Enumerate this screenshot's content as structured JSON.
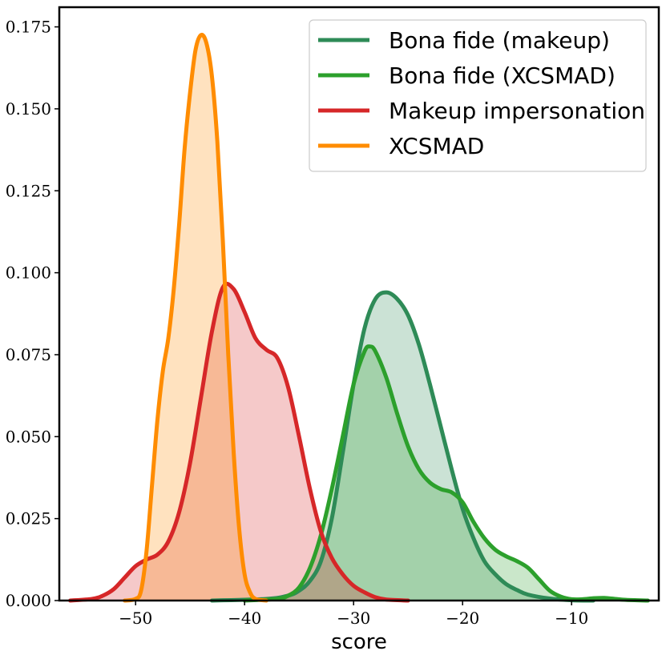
{
  "chart_data": {
    "type": "area",
    "xlabel": "score",
    "ylabel": "",
    "xlim": [
      -57,
      -2
    ],
    "ylim": [
      0,
      0.181
    ],
    "x_ticks": [
      {
        "value": -50,
        "label": "−50"
      },
      {
        "value": -40,
        "label": "−40"
      },
      {
        "value": -30,
        "label": "−30"
      },
      {
        "value": -20,
        "label": "−20"
      },
      {
        "value": -10,
        "label": "−10"
      }
    ],
    "y_ticks": [
      {
        "value": 0.0,
        "label": "0.000"
      },
      {
        "value": 0.025,
        "label": "0.025"
      },
      {
        "value": 0.05,
        "label": "0.050"
      },
      {
        "value": 0.075,
        "label": "0.075"
      },
      {
        "value": 0.1,
        "label": "0.100"
      },
      {
        "value": 0.125,
        "label": "0.125"
      },
      {
        "value": 0.15,
        "label": "0.150"
      },
      {
        "value": 0.175,
        "label": "0.175"
      }
    ],
    "grid": false,
    "legend_position": "top-right",
    "series": [
      {
        "name": "Bona fide (makeup)",
        "color": "#2e8b57",
        "fill_opacity": 0.25,
        "points": [
          [
            -43,
            0
          ],
          [
            -38,
            0.0005
          ],
          [
            -36,
            0.0015
          ],
          [
            -35,
            0.003
          ],
          [
            -34,
            0.006
          ],
          [
            -33,
            0.012
          ],
          [
            -32,
            0.025
          ],
          [
            -31,
            0.045
          ],
          [
            -30,
            0.066
          ],
          [
            -29,
            0.083
          ],
          [
            -28,
            0.092
          ],
          [
            -27,
            0.094
          ],
          [
            -26,
            0.092
          ],
          [
            -25,
            0.087
          ],
          [
            -24,
            0.078
          ],
          [
            -23,
            0.066
          ],
          [
            -22,
            0.053
          ],
          [
            -21,
            0.04
          ],
          [
            -20,
            0.028
          ],
          [
            -19,
            0.019
          ],
          [
            -18,
            0.012
          ],
          [
            -17,
            0.008
          ],
          [
            -16,
            0.005
          ],
          [
            -15,
            0.0032
          ],
          [
            -14,
            0.0018
          ],
          [
            -12,
            0.0006
          ],
          [
            -10,
            0.0001
          ],
          [
            -8,
            0
          ]
        ]
      },
      {
        "name": "Bona fide (XCSMAD)",
        "color": "#2ca02c",
        "fill_opacity": 0.25,
        "points": [
          [
            -40,
            0
          ],
          [
            -37,
            0.0005
          ],
          [
            -36,
            0.0015
          ],
          [
            -35,
            0.004
          ],
          [
            -34,
            0.01
          ],
          [
            -33,
            0.02
          ],
          [
            -32,
            0.034
          ],
          [
            -31,
            0.05
          ],
          [
            -30,
            0.066
          ],
          [
            -29,
            0.076
          ],
          [
            -28.5,
            0.0775
          ],
          [
            -28,
            0.076
          ],
          [
            -27,
            0.068
          ],
          [
            -26,
            0.057
          ],
          [
            -25,
            0.047
          ],
          [
            -24,
            0.04
          ],
          [
            -23,
            0.036
          ],
          [
            -22,
            0.034
          ],
          [
            -21,
            0.033
          ],
          [
            -20,
            0.03
          ],
          [
            -19,
            0.024
          ],
          [
            -18,
            0.019
          ],
          [
            -17,
            0.0155
          ],
          [
            -16,
            0.0135
          ],
          [
            -15,
            0.012
          ],
          [
            -14,
            0.01
          ],
          [
            -13,
            0.0065
          ],
          [
            -12,
            0.003
          ],
          [
            -11,
            0.0012
          ],
          [
            -10,
            0.0004
          ],
          [
            -9,
            0.0004
          ],
          [
            -8,
            0.0007
          ],
          [
            -7,
            0.0008
          ],
          [
            -6,
            0.0005
          ],
          [
            -5,
            0.0002
          ],
          [
            -3,
            0
          ]
        ]
      },
      {
        "name": "Makeup impersonation",
        "color": "#d62728",
        "fill_opacity": 0.25,
        "points": [
          [
            -56,
            0
          ],
          [
            -54,
            0.0005
          ],
          [
            -53,
            0.0015
          ],
          [
            -52,
            0.0035
          ],
          [
            -51,
            0.007
          ],
          [
            -50,
            0.0105
          ],
          [
            -49,
            0.0125
          ],
          [
            -48,
            0.014
          ],
          [
            -47,
            0.018
          ],
          [
            -46,
            0.027
          ],
          [
            -45,
            0.042
          ],
          [
            -44,
            0.062
          ],
          [
            -43,
            0.082
          ],
          [
            -42,
            0.0955
          ],
          [
            -41,
            0.095
          ],
          [
            -40,
            0.088
          ],
          [
            -39,
            0.08
          ],
          [
            -38,
            0.0765
          ],
          [
            -37,
            0.074
          ],
          [
            -36,
            0.065
          ],
          [
            -35,
            0.05
          ],
          [
            -34,
            0.034
          ],
          [
            -33,
            0.021
          ],
          [
            -32,
            0.013
          ],
          [
            -31,
            0.008
          ],
          [
            -30,
            0.0045
          ],
          [
            -29,
            0.0025
          ],
          [
            -28,
            0.001
          ],
          [
            -27,
            0.0003
          ],
          [
            -25,
            0
          ]
        ]
      },
      {
        "name": "XCSMAD",
        "color": "#ff8c00",
        "fill_opacity": 0.25,
        "points": [
          [
            -51,
            0
          ],
          [
            -50,
            0.0005
          ],
          [
            -49.5,
            0.003
          ],
          [
            -49,
            0.015
          ],
          [
            -48.5,
            0.035
          ],
          [
            -48,
            0.055
          ],
          [
            -47.5,
            0.07
          ],
          [
            -47,
            0.08
          ],
          [
            -46.5,
            0.095
          ],
          [
            -46,
            0.115
          ],
          [
            -45.5,
            0.138
          ],
          [
            -45,
            0.155
          ],
          [
            -44.5,
            0.168
          ],
          [
            -44,
            0.1725
          ],
          [
            -43.5,
            0.17
          ],
          [
            -43,
            0.16
          ],
          [
            -42.5,
            0.14
          ],
          [
            -42,
            0.11
          ],
          [
            -41.5,
            0.075
          ],
          [
            -41,
            0.045
          ],
          [
            -40.5,
            0.022
          ],
          [
            -40,
            0.008
          ],
          [
            -39.5,
            0.0025
          ],
          [
            -39,
            0.0005
          ],
          [
            -38,
            0
          ]
        ]
      }
    ]
  }
}
